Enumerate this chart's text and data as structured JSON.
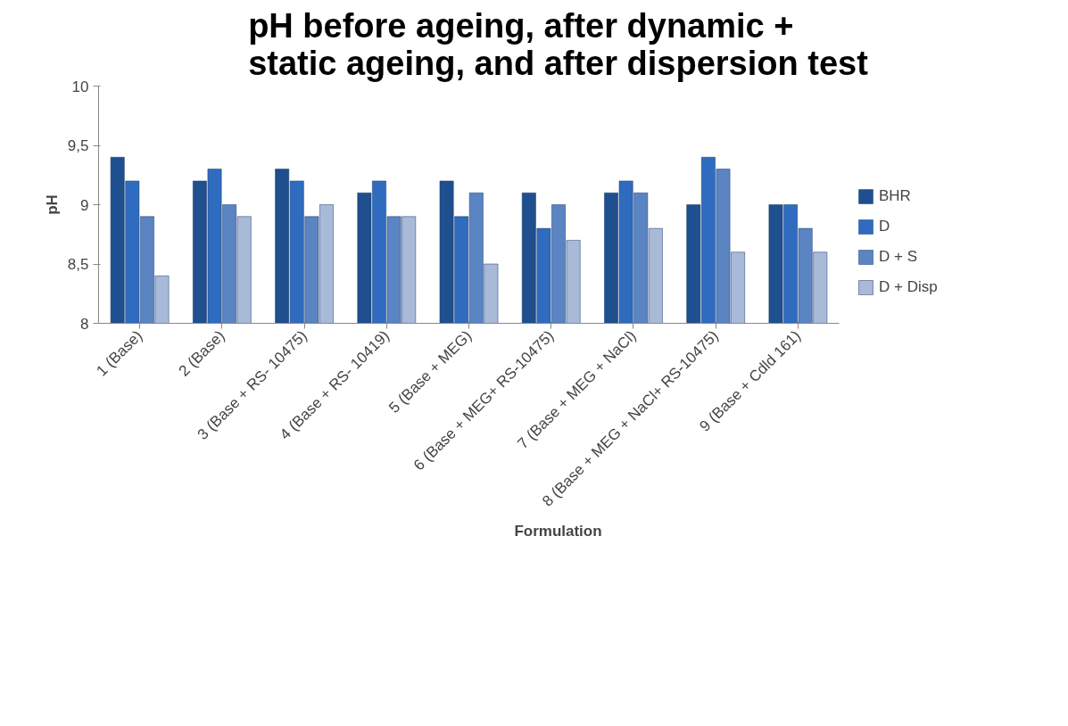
{
  "chart_data": {
    "type": "bar",
    "title": "pH before ageing, after dynamic + static ageing, and after dispersion test",
    "xlabel": "Formulation",
    "ylabel": "pH",
    "categories": [
      "1 (Base)",
      "2 (Base)",
      "3 (Base + RS- 10475)",
      "4 (Base + RS- 10419)",
      "5 (Base + MEG)",
      "6 (Base + MEG+ RS-10475)",
      "7 (Base + MEG + NaCl)",
      "8 (Base + MEG + NaCl+ RS-10475)",
      "9 (Base + Cdld 161)"
    ],
    "series": [
      {
        "name": "BHR",
        "color": "#1f4f8f",
        "values": [
          9.4,
          9.2,
          9.3,
          9.1,
          9.2,
          9.1,
          9.1,
          9.0,
          9.0
        ]
      },
      {
        "name": "D",
        "color": "#2f6cbf",
        "values": [
          9.2,
          9.3,
          9.2,
          9.2,
          8.9,
          8.8,
          9.2,
          9.4,
          9.0
        ]
      },
      {
        "name": "D + S",
        "color": "#5a84c2",
        "values": [
          8.9,
          9.0,
          8.9,
          8.9,
          9.1,
          9.0,
          9.1,
          9.3,
          8.8
        ]
      },
      {
        "name": "D + Disp",
        "color": "#a9b9d8",
        "values": [
          8.4,
          8.9,
          9.0,
          8.9,
          8.5,
          8.7,
          8.8,
          8.6,
          8.6
        ]
      }
    ],
    "ylim": [
      8,
      10
    ],
    "yticks": [
      8,
      {
        "value": 8.5,
        "label": "8,5"
      },
      9,
      {
        "value": 9.5,
        "label": "9,5"
      },
      10
    ],
    "grid": false,
    "legend": "right"
  }
}
